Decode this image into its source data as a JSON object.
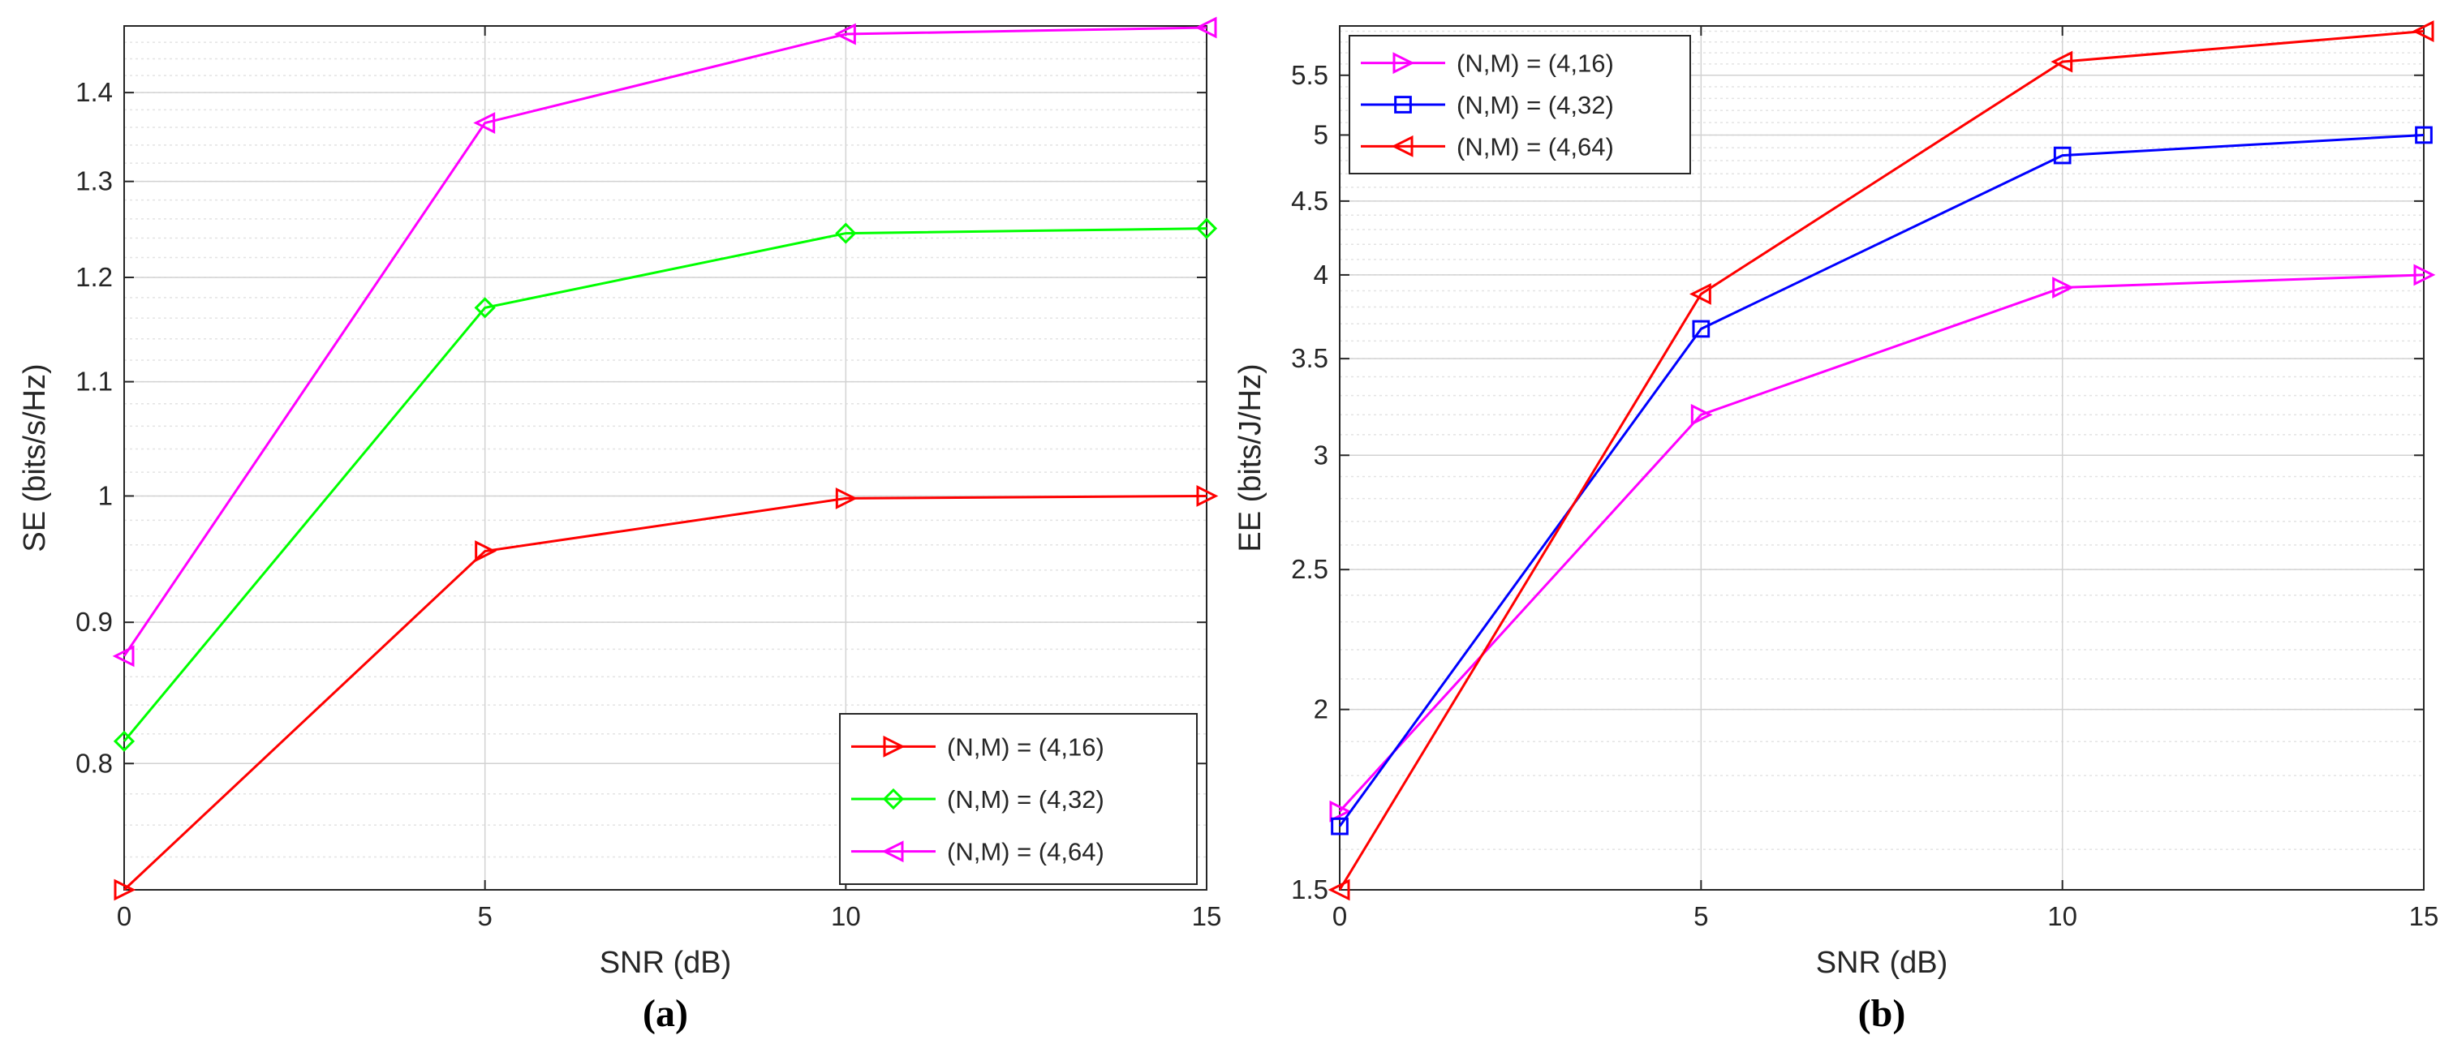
{
  "chart_data": [
    {
      "type": "line",
      "panel_label": "(a)",
      "title": "",
      "xlabel": "SNR (dB)",
      "ylabel": "SE (bits/s/Hz)",
      "yscale": "log",
      "xlim": [
        0,
        15
      ],
      "ylim": [
        0.72,
        1.48
      ],
      "grid": "on",
      "legend_location": "bottom-right",
      "x": [
        0,
        5,
        10,
        15
      ],
      "x_ticks": [
        "0",
        "5",
        "10",
        "15"
      ],
      "y_ticks": [
        {
          "value": 0.8,
          "label": "0.8"
        },
        {
          "value": 0.9,
          "label": "0.9"
        },
        {
          "value": 1.0,
          "label": "1"
        },
        {
          "value": 1.1,
          "label": "1.1"
        },
        {
          "value": 1.2,
          "label": "1.2"
        },
        {
          "value": 1.3,
          "label": "1.3"
        },
        {
          "value": 1.4,
          "label": "1.4"
        }
      ],
      "series": [
        {
          "name": "(N,M) = (4,16)",
          "color": "#ff0000",
          "marker": "triangle-right",
          "values": [
            0.72,
            0.955,
            0.998,
            1.0
          ]
        },
        {
          "name": "(N,M) = (4,32)",
          "color": "#00ff00",
          "marker": "diamond",
          "values": [
            0.815,
            1.17,
            1.245,
            1.25
          ]
        },
        {
          "name": "(N,M) = (4,64)",
          "color": "#ff00ff",
          "marker": "triangle-left",
          "values": [
            0.875,
            1.365,
            1.47,
            1.478
          ]
        }
      ]
    },
    {
      "type": "line",
      "panel_label": "(b)",
      "title": "",
      "xlabel": "SNR (dB)",
      "ylabel": "EE (bits/J/Hz)",
      "yscale": "log",
      "xlim": [
        0,
        15
      ],
      "ylim": [
        1.5,
        5.95
      ],
      "grid": "on",
      "legend_location": "top-left",
      "x": [
        0,
        5,
        10,
        15
      ],
      "x_ticks": [
        "0",
        "5",
        "10",
        "15"
      ],
      "y_ticks": [
        {
          "value": 1.5,
          "label": "1.5"
        },
        {
          "value": 2,
          "label": "2"
        },
        {
          "value": 2.5,
          "label": "2.5"
        },
        {
          "value": 3,
          "label": "3"
        },
        {
          "value": 3.5,
          "label": "3.5"
        },
        {
          "value": 4,
          "label": "4"
        },
        {
          "value": 4.5,
          "label": "4.5"
        },
        {
          "value": 5,
          "label": "5"
        },
        {
          "value": 5.5,
          "label": "5.5"
        }
      ],
      "series": [
        {
          "name": "(N,M) = (4,16)",
          "color": "#ff00ff",
          "marker": "triangle-right",
          "values": [
            1.7,
            3.2,
            3.92,
            4.0
          ]
        },
        {
          "name": "(N,M) = (4,32)",
          "color": "#0000ff",
          "marker": "square",
          "values": [
            1.66,
            3.67,
            4.84,
            5.0
          ]
        },
        {
          "name": "(N,M) = (4,64)",
          "color": "#ff0000",
          "marker": "triangle-left",
          "values": [
            1.5,
            3.88,
            5.62,
            5.9
          ]
        }
      ]
    }
  ]
}
